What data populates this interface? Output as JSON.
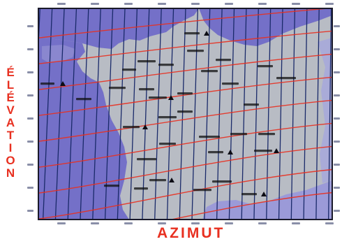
{
  "axes": {
    "y_title": "ÉLÉVATION",
    "x_title": "AZIMUT"
  },
  "colors": {
    "land": "#b8bcc4",
    "sea": "#7470c8",
    "sea_light": "#9b9ad8",
    "azimuth_lines": "#1a2a6a",
    "elevation_curves": "#e83020",
    "axis_title": "#e83020",
    "labels": "#101010"
  },
  "grid": {
    "azimuth_line_count": 27,
    "elevation_curve_count": 9
  },
  "places": [
    {
      "label": "",
      "marker": "triangle"
    },
    {
      "label": "",
      "marker": "none"
    },
    {
      "label": "",
      "marker": "none"
    },
    {
      "label": "",
      "marker": "none"
    },
    {
      "label": "",
      "marker": "none"
    },
    {
      "label": "",
      "marker": "none"
    },
    {
      "label": "",
      "marker": "none"
    },
    {
      "label": "",
      "marker": "none"
    },
    {
      "label": "",
      "marker": "triangle"
    },
    {
      "label": "",
      "marker": "none"
    },
    {
      "label": "",
      "marker": "triangle"
    },
    {
      "label": "",
      "marker": "none"
    },
    {
      "label": "",
      "marker": "none"
    },
    {
      "label": "",
      "marker": "none"
    },
    {
      "label": "",
      "marker": "none"
    },
    {
      "label": "",
      "marker": "none"
    },
    {
      "label": "",
      "marker": "none"
    },
    {
      "label": "",
      "marker": "triangle"
    },
    {
      "label": "",
      "marker": "none"
    },
    {
      "label": "",
      "marker": "none"
    },
    {
      "label": "",
      "marker": "none"
    },
    {
      "label": "",
      "marker": "none"
    },
    {
      "label": "",
      "marker": "none"
    },
    {
      "label": "",
      "marker": "triangle"
    },
    {
      "label": "",
      "marker": "triangle"
    },
    {
      "label": "",
      "marker": "none"
    },
    {
      "label": "",
      "marker": "none"
    },
    {
      "label": "",
      "marker": "none"
    },
    {
      "label": "",
      "marker": "none"
    },
    {
      "label": "",
      "marker": "triangle"
    },
    {
      "label": "",
      "marker": "none"
    },
    {
      "label": "",
      "marker": "none"
    },
    {
      "label": "",
      "marker": "triangle"
    }
  ]
}
